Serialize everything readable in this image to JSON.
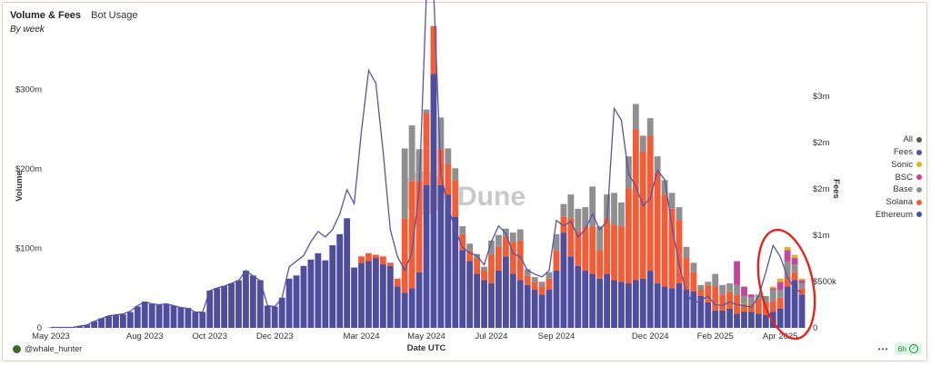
{
  "header": {
    "title": "Volume & Fees",
    "tab": "Bot Usage",
    "subtitle": "By week"
  },
  "footer": {
    "user": "@whale_hunter",
    "refresh": "6h"
  },
  "legend": [
    {
      "label": "All",
      "color": "#5a5a5a"
    },
    {
      "label": "Fees",
      "color": "#5854a3"
    },
    {
      "label": "Sonic",
      "color": "#e4b418"
    },
    {
      "label": "BSC",
      "color": "#c4459e"
    },
    {
      "label": "Base",
      "color": "#8f8f8f"
    },
    {
      "label": "Solana",
      "color": "#f05d37"
    },
    {
      "label": "Ethereum",
      "color": "#4e4d9e"
    }
  ],
  "watermark": "Dune",
  "annotation": {
    "shape": "ellipse",
    "color": "#e8231c"
  },
  "chart_data": {
    "type": "bar",
    "stacked": true,
    "xlabel": "Date UTC",
    "ylabel": "Volume",
    "y2label": "Fees",
    "ylim": [
      0,
      350
    ],
    "y2lim": [
      0,
      3.0
    ],
    "grid": false,
    "legend_position": "right",
    "yticks": [
      "0",
      "$100m",
      "$200m",
      "$300m"
    ],
    "y2ticks": [
      "0",
      "$500k",
      "$1m",
      "$2m",
      "$2m",
      "$3m"
    ],
    "xticks": [
      "May 2023",
      "Aug 2023",
      "Oct 2023",
      "Dec 2023",
      "Mar 2024",
      "May 2024",
      "Jul 2024",
      "Sep 2024",
      "Dec 2024",
      "Feb 2025",
      "Apr 2025"
    ],
    "categories": [
      "2023-05-01",
      "2023-05-08",
      "2023-05-15",
      "2023-05-22",
      "2023-05-29",
      "2023-06-05",
      "2023-06-12",
      "2023-06-19",
      "2023-06-26",
      "2023-07-03",
      "2023-07-10",
      "2023-07-17",
      "2023-07-24",
      "2023-07-31",
      "2023-08-07",
      "2023-08-14",
      "2023-08-21",
      "2023-08-28",
      "2023-09-04",
      "2023-09-11",
      "2023-09-18",
      "2023-09-25",
      "2023-10-02",
      "2023-10-09",
      "2023-10-16",
      "2023-10-23",
      "2023-10-30",
      "2023-11-06",
      "2023-11-13",
      "2023-11-20",
      "2023-11-27",
      "2023-12-04",
      "2023-12-11",
      "2023-12-18",
      "2023-12-25",
      "2024-01-01",
      "2024-01-08",
      "2024-01-15",
      "2024-01-22",
      "2024-01-29",
      "2024-02-05",
      "2024-02-12",
      "2024-02-19",
      "2024-02-26",
      "2024-03-04",
      "2024-03-11",
      "2024-03-18",
      "2024-03-25",
      "2024-04-01",
      "2024-04-08",
      "2024-04-15",
      "2024-04-22",
      "2024-04-29",
      "2024-05-06",
      "2024-05-13",
      "2024-05-20",
      "2024-05-27",
      "2024-06-03",
      "2024-06-10",
      "2024-06-17",
      "2024-06-24",
      "2024-07-01",
      "2024-07-08",
      "2024-07-15",
      "2024-07-22",
      "2024-07-29",
      "2024-08-05",
      "2024-08-12",
      "2024-08-19",
      "2024-08-26",
      "2024-09-02",
      "2024-09-09",
      "2024-09-16",
      "2024-09-23",
      "2024-09-30",
      "2024-10-07",
      "2024-10-14",
      "2024-10-21",
      "2024-10-28",
      "2024-11-04",
      "2024-11-11",
      "2024-11-18",
      "2024-11-25",
      "2024-12-02",
      "2024-12-09",
      "2024-12-16",
      "2024-12-23",
      "2024-12-30",
      "2025-01-06",
      "2025-01-13",
      "2025-01-20",
      "2025-01-27",
      "2025-02-03",
      "2025-02-10",
      "2025-02-17",
      "2025-02-24",
      "2025-03-03",
      "2025-03-10",
      "2025-03-17",
      "2025-03-24",
      "2025-03-31",
      "2025-04-07",
      "2025-04-14",
      "2025-04-21",
      "2025-04-28"
    ],
    "series": [
      {
        "name": "Ethereum",
        "values": [
          0.5,
          0.5,
          1,
          1,
          2,
          4,
          8,
          12,
          15,
          16,
          17,
          20,
          27,
          33,
          30,
          29,
          30,
          28,
          26,
          25,
          20,
          20,
          47,
          50,
          53,
          56,
          60,
          72,
          66,
          60,
          28,
          27,
          38,
          62,
          66,
          78,
          86,
          94,
          85,
          104,
          118,
          138,
          76,
          82,
          84,
          88,
          80,
          78,
          52,
          44,
          50,
          70,
          180,
          320,
          180,
          168,
          140,
          98,
          84,
          68,
          60,
          56,
          72,
          90,
          68,
          60,
          54,
          48,
          42,
          48,
          72,
          120,
          90,
          78,
          72,
          68,
          62,
          68,
          60,
          58,
          56,
          60,
          62,
          72,
          56,
          52,
          50,
          56,
          48,
          46,
          40,
          32,
          22,
          22,
          24,
          18,
          20,
          20,
          18,
          16,
          20,
          24,
          52,
          60,
          42
        ]
      },
      {
        "name": "Solana",
        "values": [
          0,
          0,
          0,
          0,
          0,
          0,
          0,
          0,
          0,
          0,
          0,
          0,
          0,
          0,
          0,
          0,
          0,
          0,
          0,
          0,
          0,
          0,
          0,
          0,
          0,
          0,
          0,
          0,
          0,
          0,
          0,
          0,
          0,
          0,
          0,
          0,
          0,
          0,
          0,
          0,
          0,
          0,
          0,
          8,
          10,
          4,
          10,
          4,
          10,
          94,
          135,
          115,
          90,
          60,
          45,
          38,
          46,
          20,
          14,
          20,
          12,
          36,
          30,
          25,
          40,
          50,
          12,
          10,
          10,
          14,
          26,
          20,
          48,
          44,
          56,
          60,
          36,
          70,
          70,
          70,
          120,
          190,
          160,
          170,
          140,
          116,
          100,
          80,
          40,
          24,
          8,
          22,
          30,
          20,
          22,
          24,
          10,
          10,
          18,
          16,
          14,
          14,
          12,
          10,
          8
        ]
      },
      {
        "name": "Base",
        "values": [
          0,
          0,
          0,
          0,
          0,
          0,
          0,
          0,
          0,
          0,
          0,
          0,
          0,
          0,
          0,
          0,
          0,
          0,
          0,
          0,
          0,
          0,
          0,
          0,
          0,
          0,
          0,
          0,
          0,
          0,
          0,
          0,
          0,
          0,
          0,
          0,
          0,
          0,
          0,
          0,
          0,
          0,
          0,
          0,
          0,
          0,
          0,
          0,
          0,
          88,
          70,
          40,
          5,
          0,
          40,
          20,
          15,
          10,
          8,
          5,
          5,
          18,
          15,
          10,
          12,
          14,
          8,
          6,
          6,
          8,
          20,
          16,
          30,
          28,
          24,
          50,
          30,
          30,
          40,
          30,
          40,
          32,
          20,
          22,
          20,
          18,
          20,
          16,
          14,
          12,
          6,
          4,
          16,
          12,
          10,
          12,
          10,
          8,
          6,
          8,
          14,
          10,
          20,
          10,
          6
        ]
      },
      {
        "name": "BSC",
        "values": [
          0,
          0,
          0,
          0,
          0,
          0,
          0,
          0,
          0,
          0,
          0,
          0,
          0,
          0,
          0,
          0,
          0,
          0,
          0,
          0,
          0,
          0,
          0,
          0,
          0,
          0,
          0,
          0,
          0,
          0,
          0,
          0,
          0,
          0,
          0,
          0,
          0,
          0,
          0,
          0,
          0,
          0,
          0,
          0,
          0,
          0,
          0,
          0,
          0,
          0,
          0,
          0,
          0,
          0,
          0,
          0,
          0,
          0,
          0,
          0,
          0,
          0,
          0,
          0,
          0,
          0,
          0,
          0,
          0,
          0,
          0,
          0,
          0,
          0,
          0,
          0,
          0,
          0,
          0,
          0,
          0,
          0,
          0,
          0,
          0,
          0,
          0,
          0,
          0,
          0,
          0,
          0,
          0,
          0,
          0,
          30,
          12,
          4,
          0,
          0,
          2,
          10,
          14,
          8,
          4
        ]
      },
      {
        "name": "Sonic",
        "values": [
          0,
          0,
          0,
          0,
          0,
          0,
          0,
          0,
          0,
          0,
          0,
          0,
          0,
          0,
          0,
          0,
          0,
          0,
          0,
          0,
          0,
          0,
          0,
          0,
          0,
          0,
          0,
          0,
          0,
          0,
          0,
          0,
          0,
          0,
          0,
          0,
          0,
          0,
          0,
          0,
          0,
          0,
          0,
          0,
          0,
          0,
          0,
          0,
          0,
          0,
          0,
          0,
          0,
          0,
          0,
          0,
          0,
          0,
          0,
          0,
          0,
          0,
          0,
          0,
          0,
          0,
          0,
          0,
          0,
          0,
          0,
          0,
          0,
          0,
          0,
          0,
          0,
          0,
          0,
          0,
          0,
          0,
          0,
          0,
          0,
          0,
          0,
          0,
          0,
          0,
          0,
          0,
          0,
          0,
          0,
          0,
          0,
          0,
          0,
          0,
          2,
          4,
          4,
          4,
          2
        ]
      }
    ],
    "fees": [
      0.005,
      0.005,
      0.005,
      0.005,
      0.02,
      0.03,
      0.07,
      0.1,
      0.13,
      0.14,
      0.15,
      0.18,
      0.24,
      0.28,
      0.26,
      0.25,
      0.26,
      0.24,
      0.22,
      0.21,
      0.17,
      0.17,
      0.4,
      0.43,
      0.45,
      0.48,
      0.51,
      0.62,
      0.56,
      0.51,
      0.24,
      0.23,
      0.32,
      0.66,
      0.72,
      0.78,
      0.93,
      1.04,
      0.98,
      1.06,
      1.23,
      1.49,
      1.34,
      2.12,
      2.78,
      2.64,
      1.91,
      1.06,
      0.77,
      0.62,
      0.82,
      1.49,
      3.6,
      3.64,
      1.66,
      1.31,
      1.06,
      0.87,
      0.81,
      0.78,
      0.68,
      0.93,
      1.1,
      1.02,
      0.8,
      0.77,
      0.62,
      0.58,
      0.55,
      0.62,
      1.16,
      1.1,
      1.15,
      0.98,
      1.06,
      1.23,
      1.06,
      1.15,
      2.37,
      2.24,
      1.66,
      1.53,
      1.32,
      1.4,
      1.7,
      1.6,
      1.1,
      0.68,
      0.38,
      0.26,
      0.3,
      0.34,
      0.25,
      0.24,
      0.28,
      0.25,
      0.24,
      0.22,
      0.34,
      0.6,
      0.89,
      0.77,
      0.55,
      0.42,
      0.38
    ]
  }
}
